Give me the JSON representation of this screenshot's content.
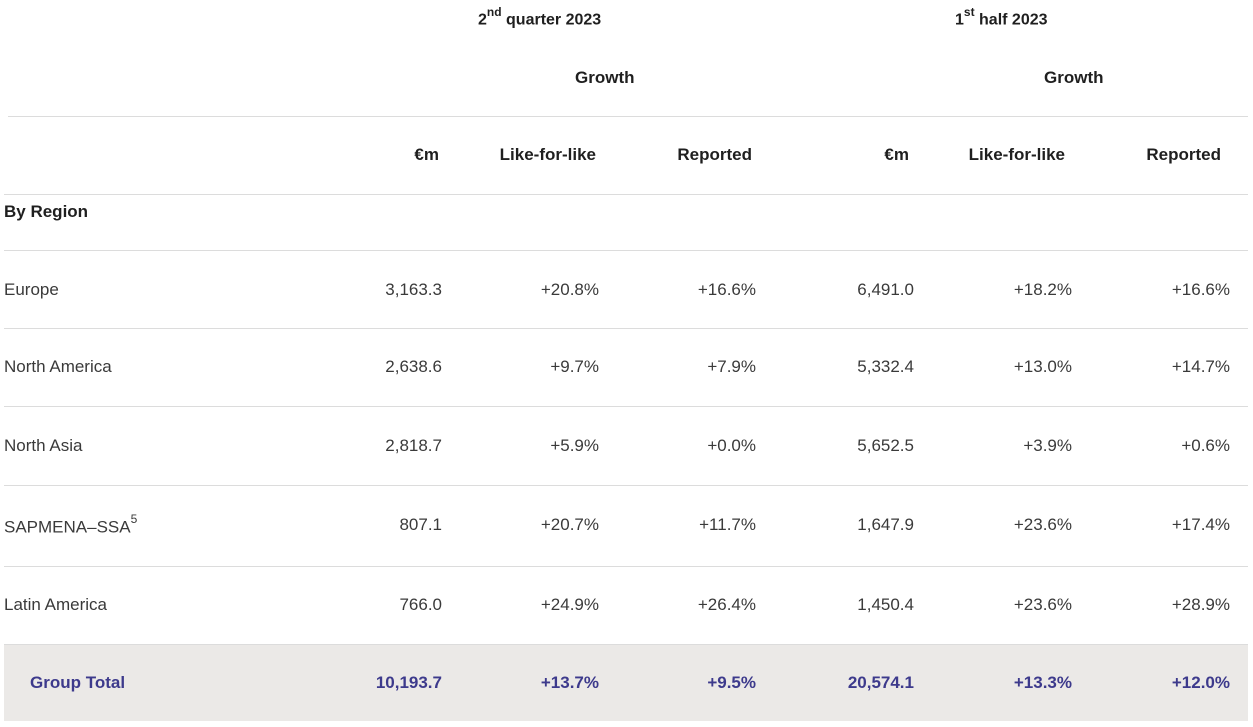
{
  "header": {
    "period1": {
      "num": "2",
      "sup": "nd",
      "text": " quarter 2023"
    },
    "period2": {
      "num": "1",
      "sup": "st",
      "text": " half 2023"
    },
    "growth_label": "Growth"
  },
  "columns": [
    "€m",
    "Like-for-like",
    "Reported",
    "€m",
    "Like-for-like",
    "Reported"
  ],
  "section_label": "By Region",
  "rows": [
    {
      "label": "Europe",
      "sup": "",
      "values": [
        "3,163.3",
        "+20.8%",
        "+16.6%",
        "6,491.0",
        "+18.2%",
        "+16.6%"
      ]
    },
    {
      "label": "North America",
      "sup": "",
      "values": [
        "2,638.6",
        "+9.7%",
        "+7.9%",
        "5,332.4",
        "+13.0%",
        "+14.7%"
      ]
    },
    {
      "label": "North Asia",
      "sup": "",
      "values": [
        "2,818.7",
        "+5.9%",
        "+0.0%",
        "5,652.5",
        "+3.9%",
        "+0.6%"
      ]
    },
    {
      "label": "SAPMENA–SSA",
      "sup": "5",
      "values": [
        "807.1",
        "+20.7%",
        "+11.7%",
        "1,647.9",
        "+23.6%",
        "+17.4%"
      ]
    },
    {
      "label": "Latin America",
      "sup": "",
      "values": [
        "766.0",
        "+24.9%",
        "+26.4%",
        "1,450.4",
        "+23.6%",
        "+28.9%"
      ]
    }
  ],
  "total": {
    "label": "Group Total",
    "values": [
      "10,193.7",
      "+13.7%",
      "+9.5%",
      "20,574.1",
      "+13.3%",
      "+12.0%"
    ]
  },
  "colors": {
    "total_text": "#3d3a8c",
    "total_bg": "#ebe9e7",
    "divider": "#dcdcdc"
  }
}
